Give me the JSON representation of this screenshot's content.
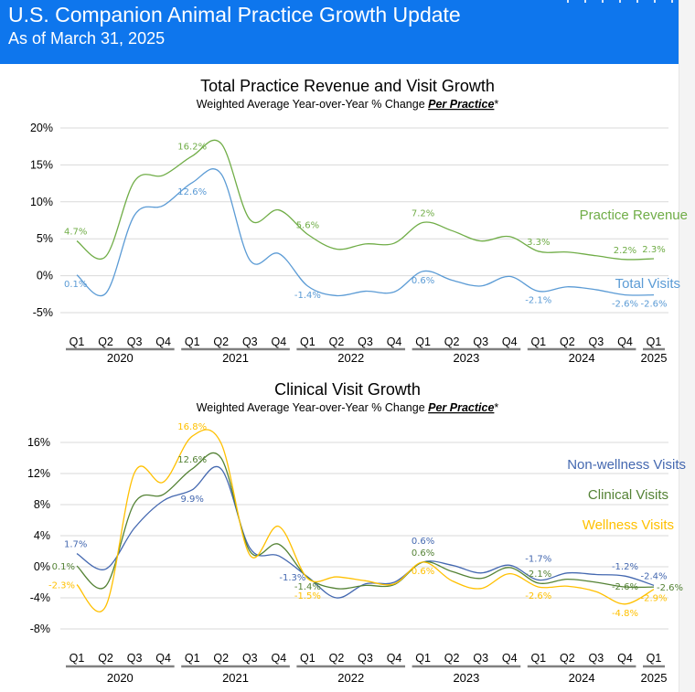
{
  "header": {
    "title": "U.S. Companion Animal Practice Growth Update",
    "subtitle": "As of March 31, 2025"
  },
  "colors": {
    "header_bg": "#0e76ed",
    "revenue": "#70ad47",
    "total_visits": "#5b9bd5",
    "non_wellness": "#4468b0",
    "clinical": "#548235",
    "wellness": "#ffc000",
    "grid": "#d9d9d9"
  },
  "chart_data": [
    {
      "type": "line",
      "title": "Total Practice Revenue and Visit Growth",
      "subtitle_prefix": "Weighted Average Year-over-Year % Change ",
      "subtitle_emphasis": "Per Practice",
      "subtitle_suffix": "*",
      "xlabel": "",
      "ylabel": "",
      "ylim": [
        -5,
        20
      ],
      "yticks": [
        20,
        15,
        10,
        5,
        0,
        -5
      ],
      "ytick_labels": [
        "20%",
        "15%",
        "10%",
        "5%",
        "0%",
        "-5%"
      ],
      "grid": true,
      "legend": "right (inline labels)",
      "x": [
        "Q1",
        "Q2",
        "Q3",
        "Q4",
        "Q1",
        "Q2",
        "Q3",
        "Q4",
        "Q1",
        "Q2",
        "Q3",
        "Q4",
        "Q1",
        "Q2",
        "Q3",
        "Q4",
        "Q1",
        "Q2",
        "Q3",
        "Q4",
        "Q1"
      ],
      "year_groups": [
        {
          "label": "2020",
          "count": 4
        },
        {
          "label": "2021",
          "count": 4
        },
        {
          "label": "2022",
          "count": 4
        },
        {
          "label": "2023",
          "count": 4
        },
        {
          "label": "2024",
          "count": 4
        },
        {
          "label": "2025",
          "count": 1
        }
      ],
      "series": [
        {
          "name": "Practice Revenue",
          "color": "#70ad47",
          "values": [
            4.7,
            2.6,
            12.8,
            13.6,
            16.2,
            17.9,
            7.6,
            8.9,
            5.6,
            3.6,
            4.3,
            4.4,
            7.2,
            6.1,
            4.7,
            5.3,
            3.3,
            3.2,
            2.7,
            2.2,
            2.3
          ],
          "labels": [
            {
              "index": 0,
              "text": "4.7%",
              "pos": "above"
            },
            {
              "index": 4,
              "text": "16.2%",
              "pos": "above"
            },
            {
              "index": 8,
              "text": "5.6%",
              "pos": "above"
            },
            {
              "index": 12,
              "text": "7.2%",
              "pos": "above"
            },
            {
              "index": 16,
              "text": "3.3%",
              "pos": "above"
            },
            {
              "index": 19,
              "text": "2.2%",
              "pos": "above"
            },
            {
              "index": 20,
              "text": "2.3%",
              "pos": "above"
            }
          ]
        },
        {
          "name": "Total Visits",
          "color": "#5b9bd5",
          "values": [
            0.1,
            -2.4,
            8.2,
            9.5,
            12.6,
            13.8,
            2.1,
            3.0,
            -1.4,
            -2.7,
            -2.1,
            -2.2,
            0.6,
            -0.6,
            -1.4,
            -0.1,
            -2.1,
            -1.5,
            -1.9,
            -2.6,
            -2.6
          ],
          "labels": [
            {
              "index": 0,
              "text": "0.1%",
              "pos": "below"
            },
            {
              "index": 4,
              "text": "12.6%",
              "pos": "below"
            },
            {
              "index": 8,
              "text": "-1.4%",
              "pos": "below"
            },
            {
              "index": 12,
              "text": "0.6%",
              "pos": "below"
            },
            {
              "index": 16,
              "text": "-2.1%",
              "pos": "below"
            },
            {
              "index": 19,
              "text": "-2.6%",
              "pos": "below"
            },
            {
              "index": 20,
              "text": "-2.6%",
              "pos": "below"
            }
          ]
        }
      ]
    },
    {
      "type": "line",
      "title": "Clinical Visit Growth",
      "subtitle_prefix": "Weighted Average Year-over-Year % Change ",
      "subtitle_emphasis": "Per Practice",
      "subtitle_suffix": "*",
      "xlabel": "",
      "ylabel": "",
      "ylim": [
        -8,
        16
      ],
      "yticks": [
        16,
        12,
        8,
        4,
        0,
        -4,
        -8
      ],
      "ytick_labels": [
        "16%",
        "12%",
        "8%",
        "4%",
        "0%",
        "-4%",
        "-8%"
      ],
      "grid": true,
      "legend": "right (inline labels)",
      "x": [
        "Q1",
        "Q2",
        "Q3",
        "Q4",
        "Q1",
        "Q2",
        "Q3",
        "Q4",
        "Q1",
        "Q2",
        "Q3",
        "Q4",
        "Q1",
        "Q2",
        "Q3",
        "Q4",
        "Q1",
        "Q2",
        "Q3",
        "Q4",
        "Q1"
      ],
      "year_groups": [
        {
          "label": "2020",
          "count": 4
        },
        {
          "label": "2021",
          "count": 4
        },
        {
          "label": "2022",
          "count": 4
        },
        {
          "label": "2023",
          "count": 4
        },
        {
          "label": "2024",
          "count": 4
        },
        {
          "label": "2025",
          "count": 1
        }
      ],
      "series": [
        {
          "name": "Non-wellness Visits",
          "color": "#4468b0",
          "values": [
            1.7,
            -0.3,
            5.0,
            8.5,
            9.9,
            12.6,
            2.4,
            1.4,
            -1.3,
            -4.0,
            -2.2,
            -2.0,
            0.6,
            0.2,
            -0.8,
            0.2,
            -1.7,
            -0.8,
            -1.0,
            -1.2,
            -2.4
          ],
          "labels": [
            {
              "index": 0,
              "text": "1.7%",
              "pos": "above"
            },
            {
              "index": 4,
              "text": "9.9%",
              "pos": "below"
            },
            {
              "index": 8,
              "text": "-1.3%",
              "pos": "left"
            },
            {
              "index": 12,
              "text": "0.6%",
              "pos": "above2"
            },
            {
              "index": 16,
              "text": "-1.7%",
              "pos": "above2"
            },
            {
              "index": 19,
              "text": "-1.2%",
              "pos": "above"
            },
            {
              "index": 20,
              "text": "-2.4%",
              "pos": "above"
            }
          ]
        },
        {
          "name": "Clinical Visits",
          "color": "#548235",
          "values": [
            0.1,
            -2.5,
            8.2,
            9.3,
            12.6,
            14.0,
            2.0,
            2.9,
            -1.4,
            -2.8,
            -2.4,
            -2.3,
            0.6,
            -0.6,
            -1.5,
            -0.1,
            -2.1,
            -1.6,
            -2.0,
            -2.6,
            -2.6
          ],
          "labels": [
            {
              "index": 0,
              "text": "0.1%",
              "pos": "left"
            },
            {
              "index": 4,
              "text": "12.6%",
              "pos": "above"
            },
            {
              "index": 8,
              "text": "-1.4%",
              "pos": "below"
            },
            {
              "index": 12,
              "text": "0.6%",
              "pos": "above"
            },
            {
              "index": 16,
              "text": "-2.1%",
              "pos": "above"
            },
            {
              "index": 19,
              "text": "-2.6%",
              "pos": "on"
            },
            {
              "index": 20,
              "text": "-2.6%",
              "pos": "right"
            }
          ]
        },
        {
          "name": "Wellness Visits",
          "color": "#ffc000",
          "values": [
            -2.3,
            -5.1,
            12.1,
            10.9,
            16.8,
            15.9,
            1.5,
            5.2,
            -1.5,
            -1.3,
            -1.8,
            -2.2,
            0.6,
            -1.8,
            -2.8,
            -0.9,
            -2.6,
            -2.5,
            -3.2,
            -4.8,
            -2.9
          ],
          "labels": [
            {
              "index": 0,
              "text": "-2.3%",
              "pos": "left"
            },
            {
              "index": 4,
              "text": "16.8%",
              "pos": "above"
            },
            {
              "index": 8,
              "text": "-1.5%",
              "pos": "below2"
            },
            {
              "index": 12,
              "text": "0.6%",
              "pos": "below"
            },
            {
              "index": 16,
              "text": "-2.6%",
              "pos": "below"
            },
            {
              "index": 19,
              "text": "-4.8%",
              "pos": "below"
            },
            {
              "index": 20,
              "text": "-2.9%",
              "pos": "below"
            }
          ]
        }
      ]
    }
  ]
}
